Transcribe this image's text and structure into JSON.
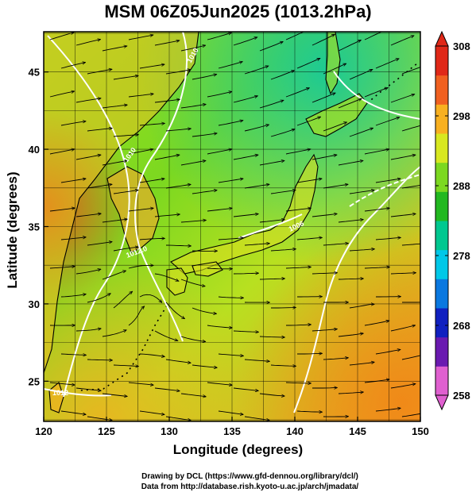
{
  "title": "MSM 06Z05Jun2025 (1013.2hPa)",
  "x_axis": {
    "label": "Longitude (degrees)",
    "range": [
      120,
      150
    ],
    "ticks": [
      120,
      125,
      130,
      135,
      140,
      145,
      150
    ],
    "tick_labels": [
      "120",
      "125",
      "130",
      "135",
      "140",
      "145",
      "150"
    ]
  },
  "y_axis": {
    "label": "Latitude  (degrees)",
    "range": [
      22.4,
      47.6
    ],
    "ticks": [
      25,
      30,
      35,
      40,
      45
    ],
    "tick_labels": [
      "25",
      "30",
      "35",
      "40",
      "45"
    ]
  },
  "colorbar": {
    "min": 258,
    "max": 308,
    "ticks": [
      258,
      268,
      278,
      288,
      298,
      308
    ],
    "tick_labels": [
      "258",
      "268",
      "278",
      "288",
      "298",
      "308"
    ],
    "colors": [
      "#e060d0",
      "#6a1ab0",
      "#1020c0",
      "#0a78e0",
      "#00c8e8",
      "#00c890",
      "#22b820",
      "#7cd820",
      "#d8e820",
      "#f8b020",
      "#f06020",
      "#e02818"
    ]
  },
  "contour_labels": [
    "1012.0",
    "1010",
    "1006",
    "1010",
    "1012"
  ],
  "credits": {
    "line1": "Drawing by DCL (https://www.gfd-dennou.org/library/dcl/)",
    "line2": "Data from http://database.rish.kyoto-u.ac.jp/arch/jmadata/"
  }
}
